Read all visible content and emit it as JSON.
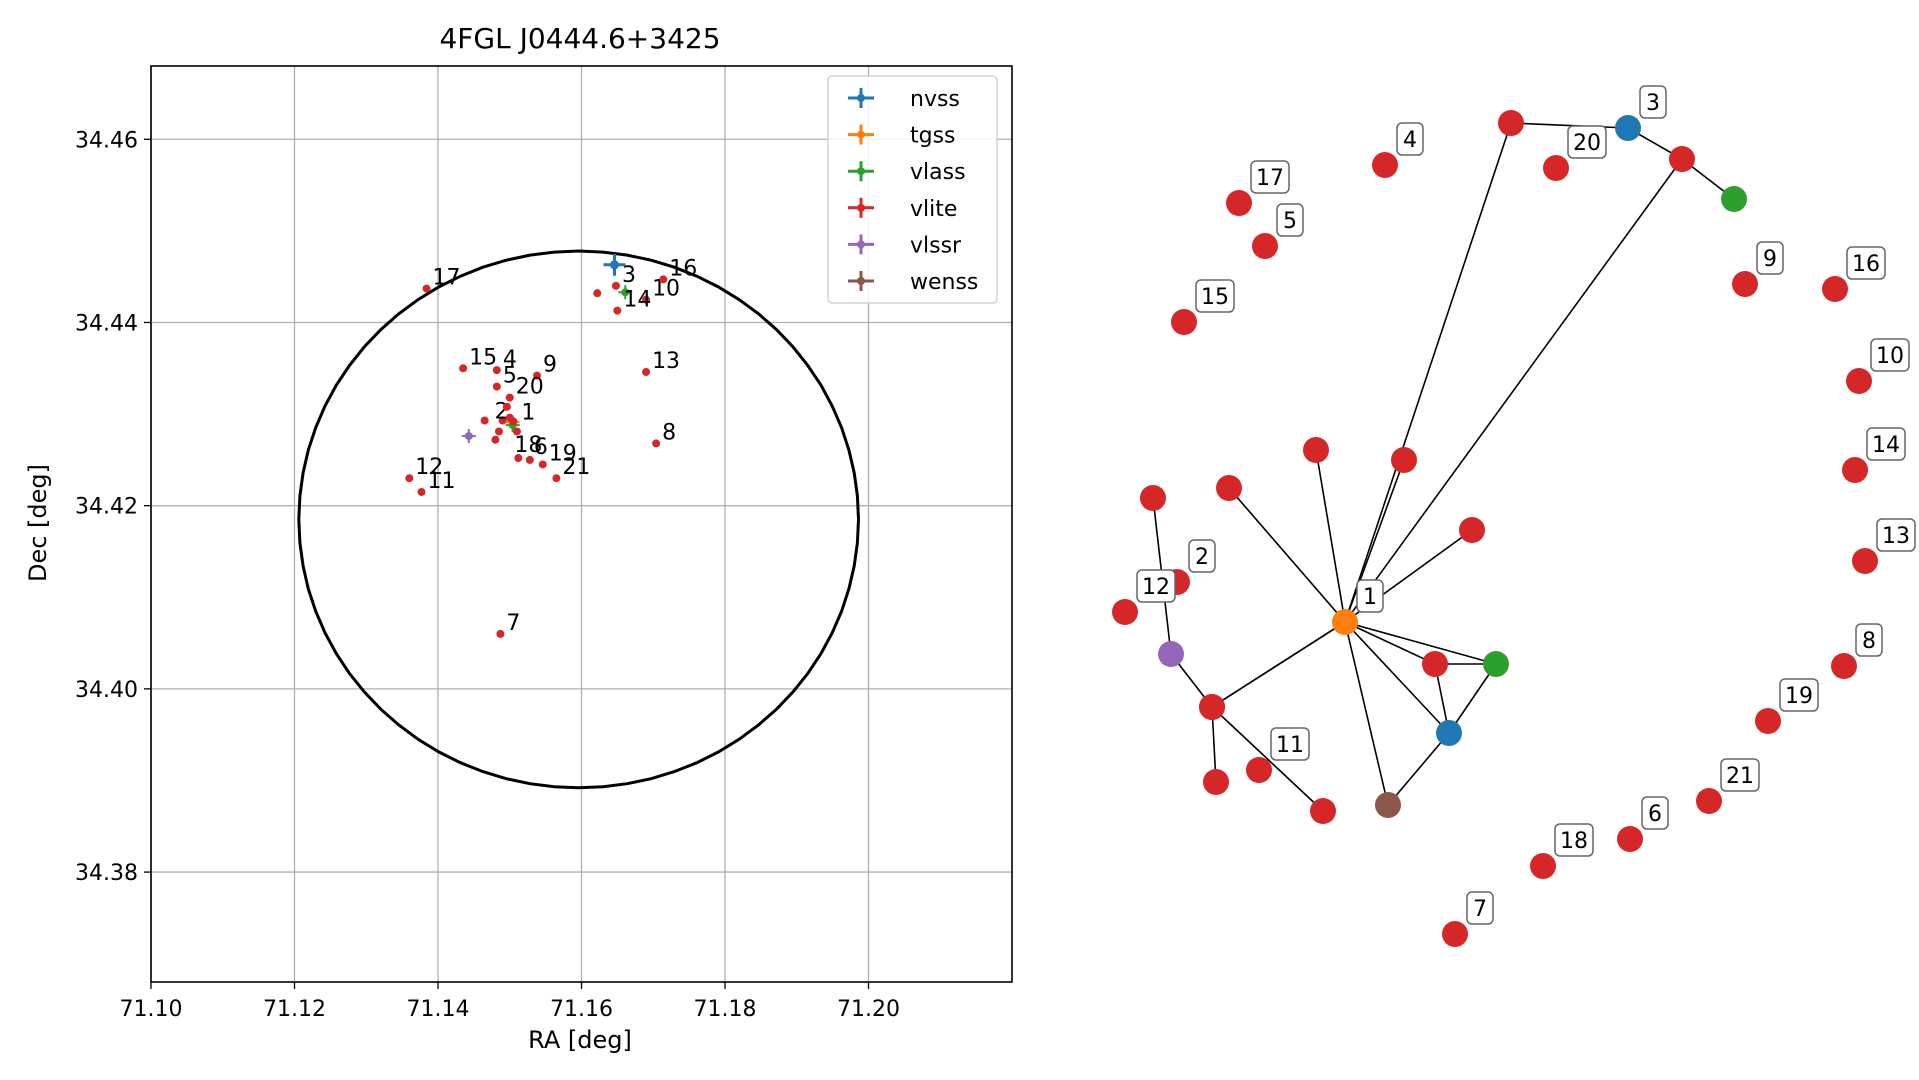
{
  "colors": {
    "nvss": "#1f77b4",
    "tgss": "#ff7f0e",
    "vlass": "#2ca02c",
    "vlite": "#d62728",
    "vlssr": "#9467bd",
    "wenss": "#8c564b",
    "grid": "#b0b0b0",
    "ellipse": "#000000"
  },
  "chart_data": [
    {
      "type": "scatter",
      "title": "4FGL J0444.6+3425",
      "xlabel": "RA [deg]",
      "ylabel": "Dec [deg]",
      "xlim": [
        71.1,
        71.22
      ],
      "ylim": [
        34.368,
        34.468
      ],
      "xticks": [
        "71.10",
        "71.12",
        "71.14",
        "71.16",
        "71.18",
        "71.20"
      ],
      "yticks": [
        "34.38",
        "34.40",
        "34.42",
        "34.44",
        "34.46"
      ],
      "grid": true,
      "legend_position": "top-right",
      "legend": [
        "nvss",
        "tgss",
        "vlass",
        "vlite",
        "vlssr",
        "wenss"
      ],
      "ellipse": {
        "center": [
          71.1596,
          34.4185
        ],
        "ra_semi_axis": 0.039,
        "dec_semi_axis": 0.0293
      },
      "series": [
        {
          "name": "nvss",
          "points": [
            {
              "x": 71.1646,
              "y": 34.4463
            }
          ]
        },
        {
          "name": "tgss",
          "points": [
            {
              "x": 71.1504,
              "y": 34.4291
            }
          ]
        },
        {
          "name": "vlass",
          "points": [
            {
              "x": 71.1661,
              "y": 34.4433
            },
            {
              "x": 71.1504,
              "y": 34.4288
            }
          ]
        },
        {
          "name": "vlite",
          "points": [
            {
              "x": 71.1505,
              "y": 34.4292,
              "label": "1"
            },
            {
              "x": 71.149,
              "y": 34.4293,
              "label": "2"
            },
            {
              "x": 71.1648,
              "y": 34.444,
              "label": "3"
            },
            {
              "x": 71.1482,
              "y": 34.4348,
              "label": "4"
            },
            {
              "x": 71.1482,
              "y": 34.433,
              "label": "5"
            },
            {
              "x": 71.1528,
              "y": 34.425,
              "label": "6"
            },
            {
              "x": 71.1487,
              "y": 34.406,
              "label": "7"
            },
            {
              "x": 71.1704,
              "y": 34.4268,
              "label": "8"
            },
            {
              "x": 71.1538,
              "y": 34.4342,
              "label": "9"
            },
            {
              "x": 71.169,
              "y": 34.4425,
              "label": "10"
            },
            {
              "x": 71.1377,
              "y": 34.4215,
              "label": "11"
            },
            {
              "x": 71.136,
              "y": 34.423,
              "label": "12"
            },
            {
              "x": 71.169,
              "y": 34.4346,
              "label": "13"
            },
            {
              "x": 71.165,
              "y": 34.4413,
              "label": "14"
            },
            {
              "x": 71.1435,
              "y": 34.435,
              "label": "15"
            },
            {
              "x": 71.1714,
              "y": 34.4447,
              "label": "16"
            },
            {
              "x": 71.1384,
              "y": 34.4437,
              "label": "17"
            },
            {
              "x": 71.1512,
              "y": 34.4252,
              "label": "18"
            },
            {
              "x": 71.1546,
              "y": 34.4245,
              "label": "19"
            },
            {
              "x": 71.15,
              "y": 34.4318,
              "label": "20"
            },
            {
              "x": 71.1565,
              "y": 34.423,
              "label": "21"
            },
            {
              "x": 71.1622,
              "y": 34.4432
            },
            {
              "x": 71.1465,
              "y": 34.4293
            },
            {
              "x": 71.1485,
              "y": 34.4281
            },
            {
              "x": 71.148,
              "y": 34.4272
            },
            {
              "x": 71.1496,
              "y": 34.4308
            },
            {
              "x": 71.151,
              "y": 34.4281
            },
            {
              "x": 71.15,
              "y": 34.4296
            }
          ]
        },
        {
          "name": "vlssr",
          "points": [
            {
              "x": 71.1443,
              "y": 34.4276
            }
          ]
        },
        {
          "name": "wenss",
          "points": []
        }
      ]
    },
    {
      "type": "network",
      "nodes": [
        {
          "id": "1",
          "series": "tgss",
          "labeled": true
        },
        {
          "id": "3",
          "series": "nvss",
          "labeled": true
        },
        {
          "id": "nvss_b",
          "series": "nvss",
          "labeled": false
        },
        {
          "id": "vlass_a",
          "series": "vlass",
          "labeled": false
        },
        {
          "id": "vlass_b",
          "series": "vlass",
          "labeled": false
        },
        {
          "id": "vlssr_a",
          "series": "vlssr",
          "labeled": false
        },
        {
          "id": "wenss_a",
          "series": "wenss",
          "labeled": false
        },
        {
          "id": "2",
          "series": "vlite",
          "labeled": true
        },
        {
          "id": "4",
          "series": "vlite",
          "labeled": true
        },
        {
          "id": "5",
          "series": "vlite",
          "labeled": true
        },
        {
          "id": "6",
          "series": "vlite",
          "labeled": true
        },
        {
          "id": "7",
          "series": "vlite",
          "labeled": true
        },
        {
          "id": "8",
          "series": "vlite",
          "labeled": true
        },
        {
          "id": "9",
          "series": "vlite",
          "labeled": true
        },
        {
          "id": "10",
          "series": "vlite",
          "labeled": true
        },
        {
          "id": "11",
          "series": "vlite",
          "labeled": true
        },
        {
          "id": "12",
          "series": "vlite",
          "labeled": true
        },
        {
          "id": "13",
          "series": "vlite",
          "labeled": true
        },
        {
          "id": "14",
          "series": "vlite",
          "labeled": true
        },
        {
          "id": "15",
          "series": "vlite",
          "labeled": true
        },
        {
          "id": "16",
          "series": "vlite",
          "labeled": true
        },
        {
          "id": "17",
          "series": "vlite",
          "labeled": true
        },
        {
          "id": "18",
          "series": "vlite",
          "labeled": true
        },
        {
          "id": "19",
          "series": "vlite",
          "labeled": true
        },
        {
          "id": "20",
          "series": "vlite",
          "labeled": true
        },
        {
          "id": "21",
          "series": "vlite",
          "labeled": true
        },
        {
          "id": "u1",
          "series": "vlite",
          "labeled": false
        },
        {
          "id": "u2",
          "series": "vlite",
          "labeled": false
        },
        {
          "id": "u3",
          "series": "vlite",
          "labeled": false
        },
        {
          "id": "u4",
          "series": "vlite",
          "labeled": false
        },
        {
          "id": "u5",
          "series": "vlite",
          "labeled": false
        },
        {
          "id": "u6",
          "series": "vlite",
          "labeled": false
        },
        {
          "id": "u7",
          "series": "vlite",
          "labeled": false
        },
        {
          "id": "u8",
          "series": "vlite",
          "labeled": false
        },
        {
          "id": "u9",
          "series": "vlite",
          "labeled": false
        },
        {
          "id": "u10",
          "series": "vlite",
          "labeled": false
        },
        {
          "id": "u11",
          "series": "vlite",
          "labeled": false
        },
        {
          "id": "u12",
          "series": "vlite",
          "labeled": false
        }
      ],
      "edges": [
        [
          "1",
          "u1"
        ],
        [
          "1",
          "u2"
        ],
        [
          "1",
          "u3"
        ],
        [
          "1",
          "u4"
        ],
        [
          "1",
          "u5"
        ],
        [
          "1",
          "u6"
        ],
        [
          "1",
          "u7"
        ],
        [
          "1",
          "nvss_b"
        ],
        [
          "1",
          "vlass_b"
        ],
        [
          "1",
          "wenss_a"
        ],
        [
          "1",
          "u8"
        ],
        [
          "1",
          "u9"
        ],
        [
          "u7",
          "vlass_b"
        ],
        [
          "u7",
          "nvss_b"
        ],
        [
          "nvss_b",
          "vlass_b"
        ],
        [
          "nvss_b",
          "wenss_a"
        ],
        [
          "u10",
          "vlssr_a"
        ],
        [
          "vlssr_a",
          "u6"
        ],
        [
          "u9",
          "u11"
        ],
        [
          "u9",
          "u12"
        ],
        [
          "u3",
          "3"
        ],
        [
          "3",
          "u4"
        ],
        [
          "u4",
          "vlass_a"
        ]
      ]
    }
  ]
}
